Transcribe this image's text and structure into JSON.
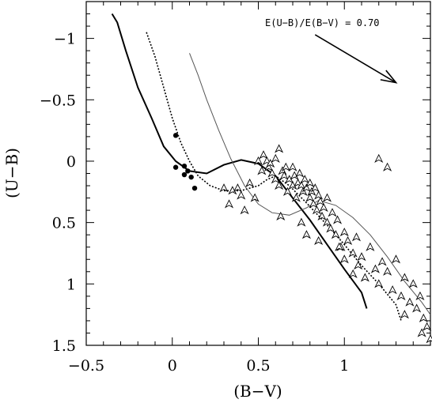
{
  "chart_data": {
    "type": "scatter",
    "title": "",
    "xlabel": "(B−V)",
    "ylabel": "(U−B)",
    "xlim": [
      -0.5,
      1.5
    ],
    "ylim": [
      1.5,
      -1.3
    ],
    "y_inverted": true,
    "grid": false,
    "xticks": [
      -0.5,
      0,
      0.5,
      1
    ],
    "xtick_labels": [
      "−0.5",
      "0",
      "0.5",
      "1"
    ],
    "yticks": [
      -1,
      -0.5,
      0,
      0.5,
      1,
      1.5
    ],
    "ytick_labels": [
      "−1",
      "−0.5",
      "0",
      "0.5",
      "1",
      "1.5"
    ],
    "annotation": {
      "text": "E(U−B)/E(B−V) = 0.70",
      "arrow_from": [
        0.83,
        -1.03
      ],
      "arrow_to": [
        1.3,
        -0.64
      ]
    },
    "series": [
      {
        "style": "solid-thick",
        "color": "#000000",
        "points": [
          [
            -0.35,
            -1.2
          ],
          [
            -0.32,
            -1.13
          ],
          [
            -0.27,
            -0.9
          ],
          [
            -0.2,
            -0.6
          ],
          [
            -0.12,
            -0.35
          ],
          [
            -0.05,
            -0.12
          ],
          [
            0.02,
            0.0
          ],
          [
            0.1,
            0.08
          ],
          [
            0.2,
            0.1
          ],
          [
            0.3,
            0.03
          ],
          [
            0.4,
            -0.01
          ],
          [
            0.5,
            0.02
          ],
          [
            0.6,
            0.12
          ],
          [
            0.7,
            0.3
          ],
          [
            0.8,
            0.48
          ],
          [
            0.9,
            0.68
          ],
          [
            1.0,
            0.88
          ],
          [
            1.1,
            1.07
          ],
          [
            1.13,
            1.2
          ]
        ]
      },
      {
        "style": "dotted",
        "color": "#000000",
        "points": [
          [
            -0.15,
            -1.05
          ],
          [
            -0.1,
            -0.85
          ],
          [
            -0.05,
            -0.6
          ],
          [
            0.0,
            -0.35
          ],
          [
            0.05,
            -0.15
          ],
          [
            0.1,
            0.0
          ],
          [
            0.15,
            0.12
          ],
          [
            0.22,
            0.2
          ],
          [
            0.3,
            0.24
          ],
          [
            0.4,
            0.24
          ],
          [
            0.5,
            0.2
          ],
          [
            0.55,
            0.15
          ],
          [
            0.6,
            0.12
          ],
          [
            0.68,
            0.2
          ],
          [
            0.78,
            0.34
          ],
          [
            0.9,
            0.52
          ],
          [
            1.0,
            0.68
          ],
          [
            1.1,
            0.85
          ],
          [
            1.2,
            1.0
          ],
          [
            1.3,
            1.17
          ],
          [
            1.33,
            1.3
          ]
        ]
      },
      {
        "style": "solid-thin",
        "color": "#555555",
        "points": [
          [
            0.1,
            -0.88
          ],
          [
            0.15,
            -0.7
          ],
          [
            0.2,
            -0.5
          ],
          [
            0.27,
            -0.25
          ],
          [
            0.34,
            -0.02
          ],
          [
            0.42,
            0.2
          ],
          [
            0.5,
            0.35
          ],
          [
            0.58,
            0.42
          ],
          [
            0.68,
            0.44
          ],
          [
            0.78,
            0.38
          ],
          [
            0.85,
            0.32
          ],
          [
            0.95,
            0.36
          ],
          [
            1.05,
            0.46
          ],
          [
            1.15,
            0.6
          ],
          [
            1.25,
            0.78
          ],
          [
            1.35,
            0.98
          ],
          [
            1.45,
            1.15
          ],
          [
            1.5,
            1.25
          ]
        ]
      },
      {
        "style": "filled-circle",
        "color": "#000000",
        "points": [
          [
            0.02,
            -0.21
          ],
          [
            0.02,
            0.05
          ],
          [
            0.07,
            0.04
          ],
          [
            0.07,
            0.11
          ],
          [
            0.09,
            0.08
          ],
          [
            0.11,
            0.13
          ],
          [
            0.13,
            0.22
          ]
        ]
      },
      {
        "style": "triangle-open",
        "color": "#000000",
        "points": [
          [
            0.3,
            0.22
          ],
          [
            0.33,
            0.35
          ],
          [
            0.35,
            0.24
          ],
          [
            0.38,
            0.22
          ],
          [
            0.4,
            0.28
          ],
          [
            0.42,
            0.4
          ],
          [
            0.45,
            0.18
          ],
          [
            0.48,
            0.3
          ],
          [
            0.5,
            0.0
          ],
          [
            0.52,
            0.08
          ],
          [
            0.53,
            -0.05
          ],
          [
            0.55,
            0.0
          ],
          [
            0.56,
            0.05
          ],
          [
            0.57,
            0.02
          ],
          [
            0.58,
            0.1
          ],
          [
            0.6,
            0.15
          ],
          [
            0.6,
            -0.02
          ],
          [
            0.62,
            0.2
          ],
          [
            0.63,
            0.45
          ],
          [
            0.64,
            0.08
          ],
          [
            0.65,
            0.12
          ],
          [
            0.66,
            0.05
          ],
          [
            0.67,
            0.25
          ],
          [
            0.68,
            0.15
          ],
          [
            0.7,
            0.2
          ],
          [
            0.7,
            0.05
          ],
          [
            0.71,
            0.12
          ],
          [
            0.72,
            0.3
          ],
          [
            0.73,
            0.18
          ],
          [
            0.74,
            0.1
          ],
          [
            0.75,
            0.2
          ],
          [
            0.75,
            0.5
          ],
          [
            0.76,
            0.25
          ],
          [
            0.77,
            0.15
          ],
          [
            0.78,
            0.22
          ],
          [
            0.78,
            0.6
          ],
          [
            0.8,
            0.3
          ],
          [
            0.8,
            0.18
          ],
          [
            0.81,
            0.25
          ],
          [
            0.82,
            0.35
          ],
          [
            0.83,
            0.22
          ],
          [
            0.84,
            0.4
          ],
          [
            0.85,
            0.28
          ],
          [
            0.85,
            0.65
          ],
          [
            0.86,
            0.33
          ],
          [
            0.87,
            0.45
          ],
          [
            0.88,
            0.38
          ],
          [
            0.9,
            0.5
          ],
          [
            0.9,
            0.3
          ],
          [
            0.92,
            0.55
          ],
          [
            0.93,
            0.42
          ],
          [
            0.95,
            0.6
          ],
          [
            0.96,
            0.48
          ],
          [
            0.98,
            0.7
          ],
          [
            1.0,
            0.58
          ],
          [
            1.0,
            0.8
          ],
          [
            1.02,
            0.65
          ],
          [
            1.05,
            0.75
          ],
          [
            1.07,
            0.62
          ],
          [
            1.08,
            0.85
          ],
          [
            1.1,
            0.78
          ],
          [
            1.12,
            0.95
          ],
          [
            1.15,
            0.7
          ],
          [
            1.18,
            0.88
          ],
          [
            1.2,
            1.0
          ],
          [
            1.22,
            0.82
          ],
          [
            1.25,
            0.9
          ],
          [
            1.28,
            1.05
          ],
          [
            1.3,
            0.8
          ],
          [
            1.33,
            1.1
          ],
          [
            1.35,
            0.95
          ],
          [
            1.38,
            1.15
          ],
          [
            1.4,
            1.0
          ],
          [
            1.42,
            1.2
          ],
          [
            1.44,
            1.1
          ],
          [
            1.46,
            1.28
          ],
          [
            1.48,
            1.35
          ],
          [
            1.5,
            1.45
          ],
          [
            1.2,
            -0.02
          ],
          [
            1.25,
            0.05
          ],
          [
            1.35,
            1.25
          ],
          [
            1.45,
            1.4
          ],
          [
            0.62,
            -0.1
          ],
          [
            0.97,
            0.7
          ],
          [
            1.05,
            0.92
          ]
        ]
      }
    ]
  }
}
